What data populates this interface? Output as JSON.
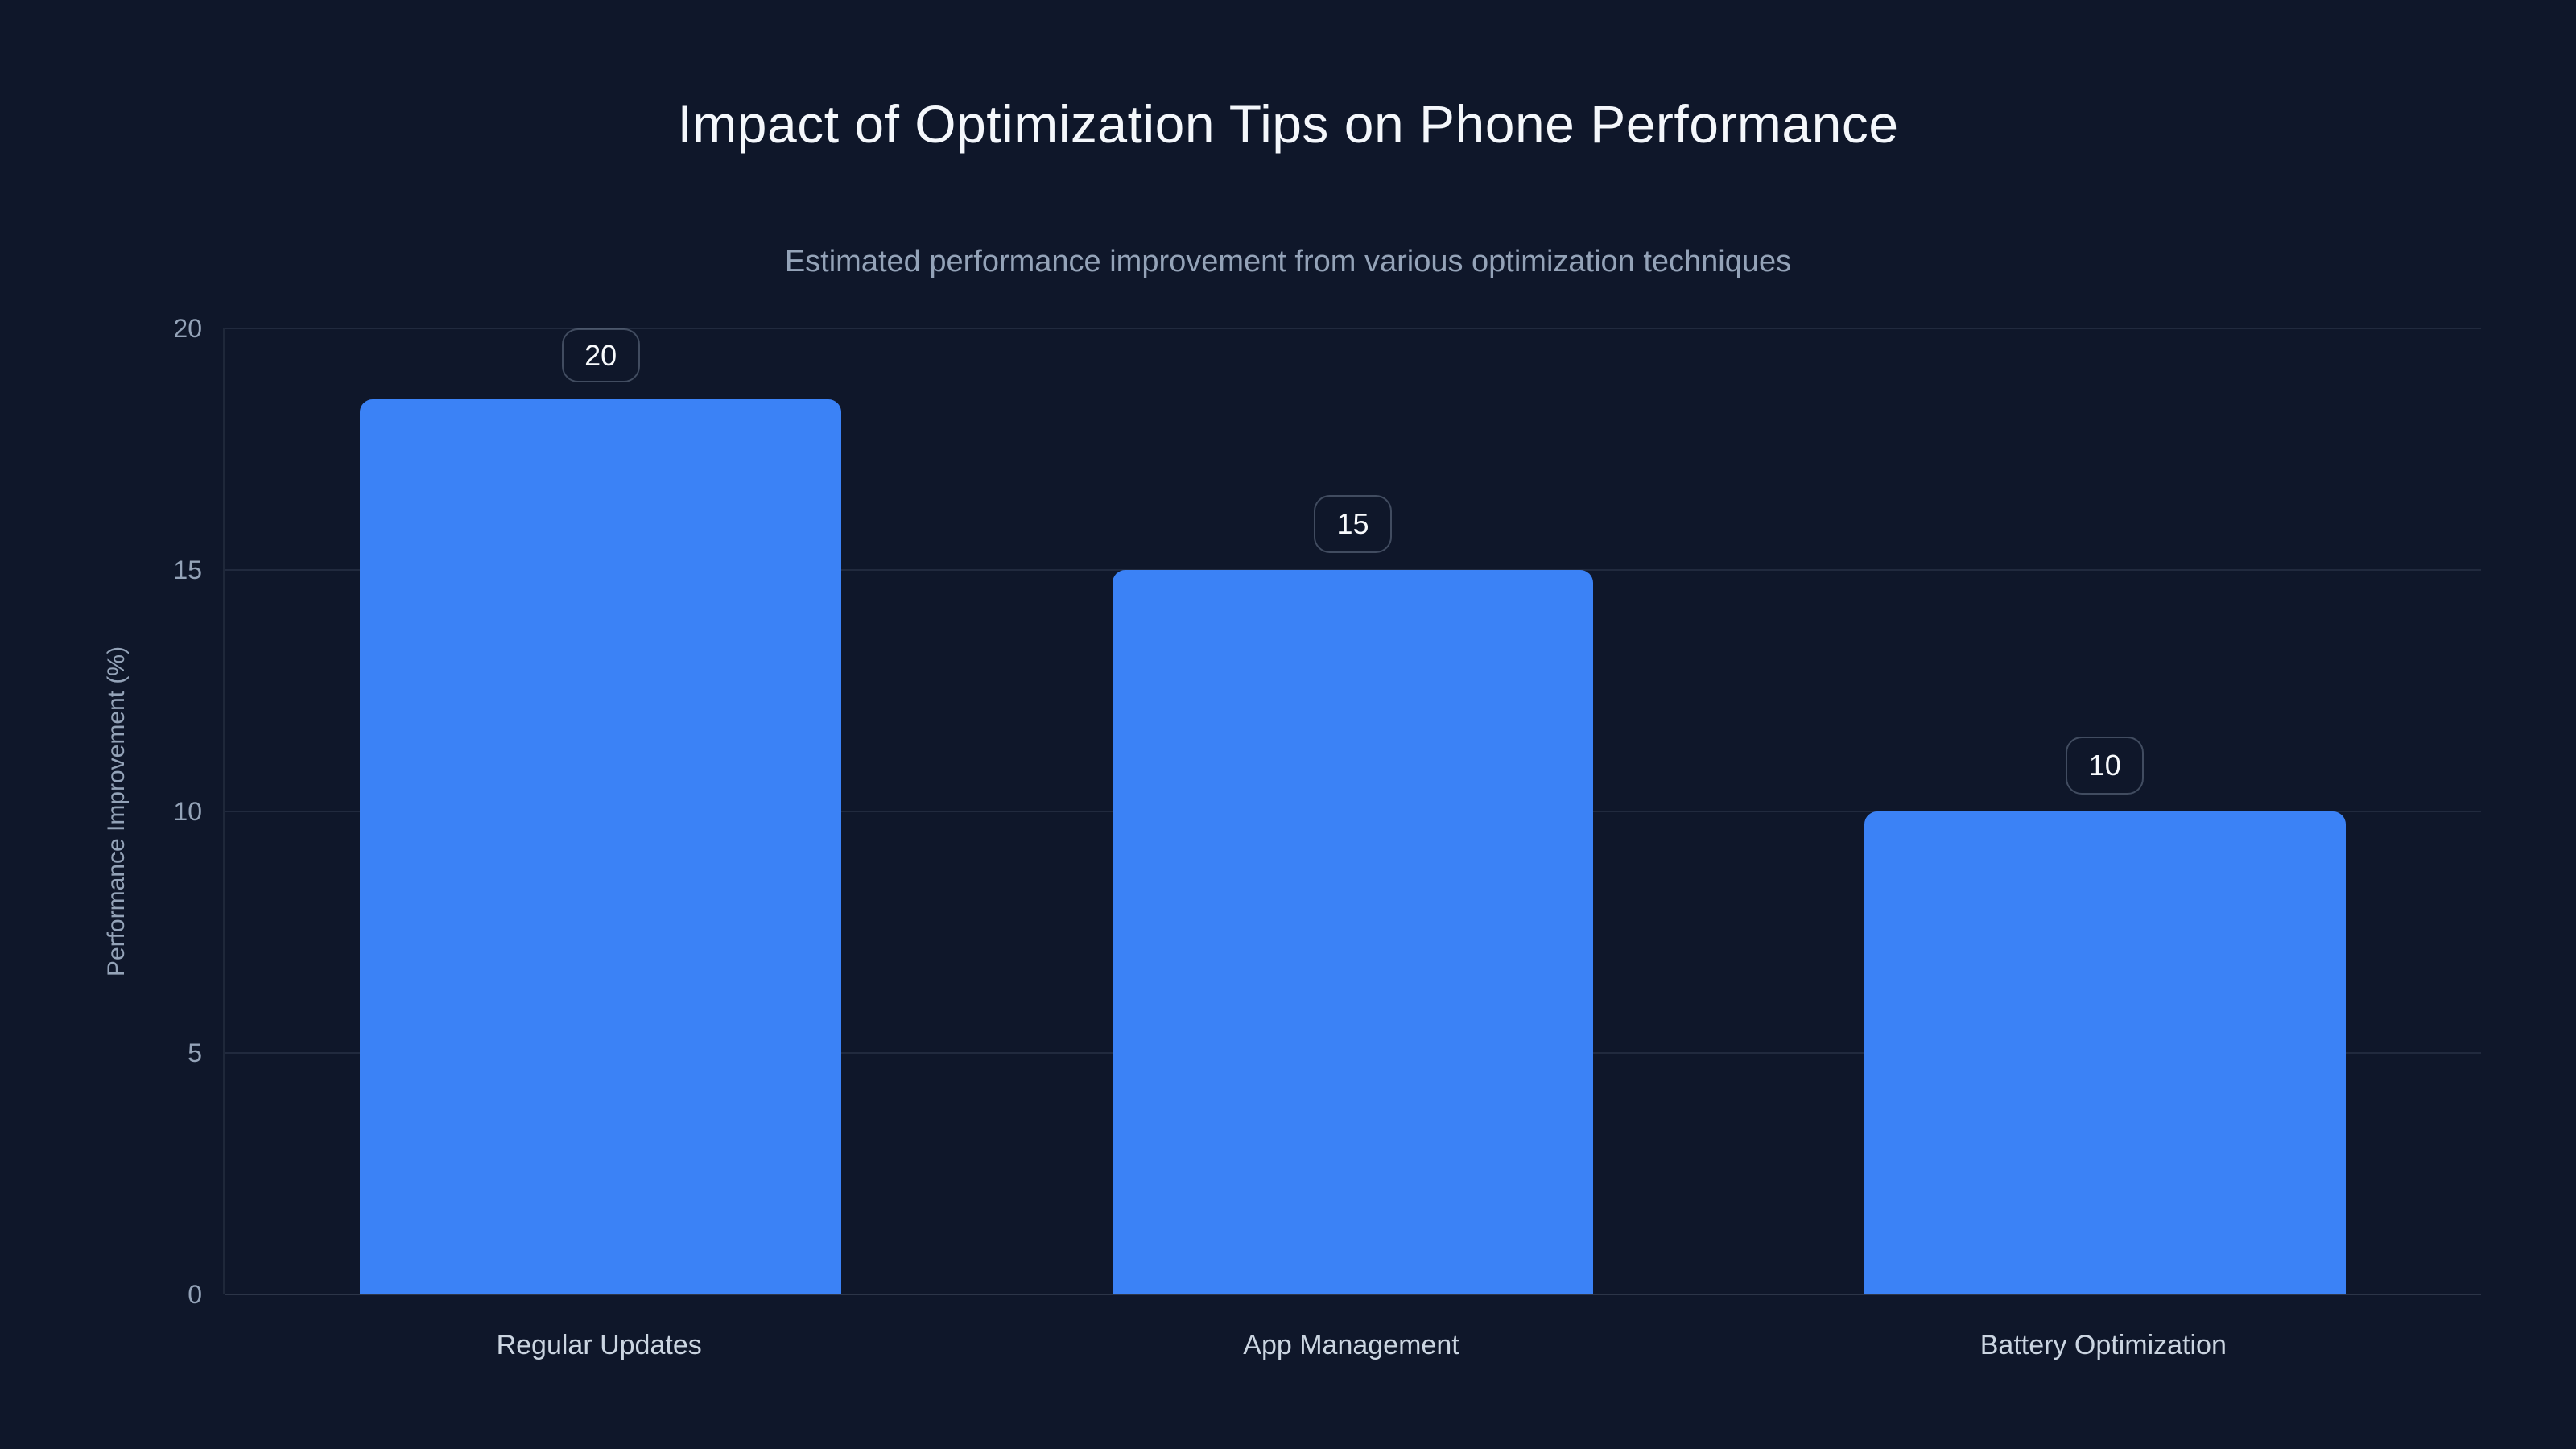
{
  "colors": {
    "background": "#0f172a",
    "bar": "#3b82f6",
    "title_text": "#f4f7fb",
    "muted_text": "#94a3b8",
    "axis_label_text": "#cbd5e1",
    "gridline": "rgba(148,163,184,0.14)"
  },
  "chart_data": {
    "type": "bar",
    "title": "Impact of Optimization Tips on Phone Performance",
    "subtitle": "Estimated performance improvement from various optimization techniques",
    "categories": [
      "Regular Updates",
      "App Management",
      "Battery Optimization"
    ],
    "values": [
      20,
      15,
      10
    ],
    "xlabel": "",
    "ylabel": "Performance Improvement (%)",
    "ylim": [
      0,
      20
    ],
    "yticks": [
      0,
      5,
      10,
      15,
      20
    ],
    "grid": true,
    "legend": false,
    "bar_color": "#3b82f6"
  }
}
